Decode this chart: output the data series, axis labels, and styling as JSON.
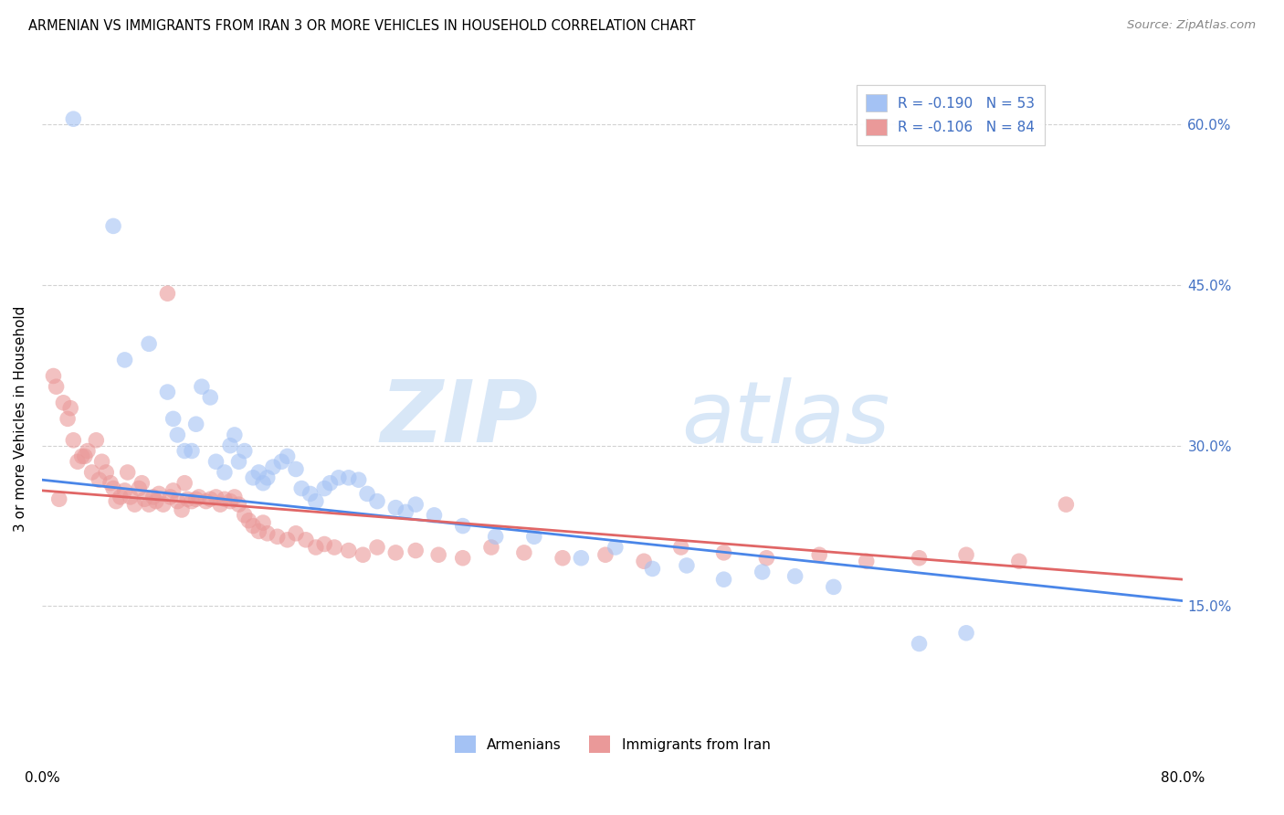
{
  "title": "ARMENIAN VS IMMIGRANTS FROM IRAN 3 OR MORE VEHICLES IN HOUSEHOLD CORRELATION CHART",
  "source": "Source: ZipAtlas.com",
  "ylabel": "3 or more Vehicles in Household",
  "legend_armenians": "Armenians",
  "legend_iran": "Immigrants from Iran",
  "legend_R_armenians": "-0.190",
  "legend_N_armenians": "53",
  "legend_R_iran": "-0.106",
  "legend_N_iran": "84",
  "color_armenians": "#a4c2f4",
  "color_iran": "#ea9999",
  "color_line_armenians": "#4a86e8",
  "color_line_iran": "#e06666",
  "watermark_zip": "ZIP",
  "watermark_atlas": "atlas",
  "xlim": [
    0.0,
    0.8
  ],
  "ylim": [
    0.0,
    0.65
  ],
  "x_ticks": [
    0.0,
    0.2,
    0.4,
    0.6,
    0.8
  ],
  "y_ticks": [
    0.15,
    0.3,
    0.45,
    0.6
  ],
  "armenians_x": [
    0.022,
    0.05,
    0.058,
    0.075,
    0.088,
    0.092,
    0.095,
    0.1,
    0.105,
    0.108,
    0.112,
    0.118,
    0.122,
    0.128,
    0.132,
    0.135,
    0.138,
    0.142,
    0.148,
    0.152,
    0.155,
    0.158,
    0.162,
    0.168,
    0.172,
    0.178,
    0.182,
    0.188,
    0.192,
    0.198,
    0.202,
    0.208,
    0.215,
    0.222,
    0.228,
    0.235,
    0.248,
    0.255,
    0.262,
    0.275,
    0.295,
    0.318,
    0.345,
    0.378,
    0.402,
    0.428,
    0.452,
    0.478,
    0.505,
    0.528,
    0.555,
    0.615,
    0.648
  ],
  "armenians_y": [
    0.605,
    0.505,
    0.38,
    0.395,
    0.35,
    0.325,
    0.31,
    0.295,
    0.295,
    0.32,
    0.355,
    0.345,
    0.285,
    0.275,
    0.3,
    0.31,
    0.285,
    0.295,
    0.27,
    0.275,
    0.265,
    0.27,
    0.28,
    0.285,
    0.29,
    0.278,
    0.26,
    0.255,
    0.248,
    0.26,
    0.265,
    0.27,
    0.27,
    0.268,
    0.255,
    0.248,
    0.242,
    0.238,
    0.245,
    0.235,
    0.225,
    0.215,
    0.215,
    0.195,
    0.205,
    0.185,
    0.188,
    0.175,
    0.182,
    0.178,
    0.168,
    0.115,
    0.125
  ],
  "iran_x": [
    0.008,
    0.01,
    0.012,
    0.015,
    0.018,
    0.02,
    0.022,
    0.025,
    0.028,
    0.03,
    0.032,
    0.035,
    0.038,
    0.04,
    0.042,
    0.045,
    0.048,
    0.05,
    0.052,
    0.055,
    0.058,
    0.06,
    0.062,
    0.065,
    0.068,
    0.07,
    0.072,
    0.075,
    0.078,
    0.08,
    0.082,
    0.085,
    0.088,
    0.09,
    0.092,
    0.095,
    0.098,
    0.1,
    0.102,
    0.105,
    0.108,
    0.11,
    0.115,
    0.118,
    0.122,
    0.125,
    0.128,
    0.132,
    0.135,
    0.138,
    0.142,
    0.145,
    0.148,
    0.152,
    0.155,
    0.158,
    0.165,
    0.172,
    0.178,
    0.185,
    0.192,
    0.198,
    0.205,
    0.215,
    0.225,
    0.235,
    0.248,
    0.262,
    0.278,
    0.295,
    0.315,
    0.338,
    0.365,
    0.395,
    0.422,
    0.448,
    0.478,
    0.508,
    0.545,
    0.578,
    0.615,
    0.648,
    0.685,
    0.718
  ],
  "iran_y": [
    0.365,
    0.355,
    0.25,
    0.34,
    0.325,
    0.335,
    0.305,
    0.285,
    0.29,
    0.29,
    0.295,
    0.275,
    0.305,
    0.268,
    0.285,
    0.275,
    0.265,
    0.26,
    0.248,
    0.252,
    0.258,
    0.275,
    0.252,
    0.245,
    0.26,
    0.265,
    0.25,
    0.245,
    0.252,
    0.248,
    0.255,
    0.245,
    0.442,
    0.252,
    0.258,
    0.248,
    0.24,
    0.265,
    0.25,
    0.248,
    0.25,
    0.252,
    0.248,
    0.25,
    0.252,
    0.245,
    0.25,
    0.248,
    0.252,
    0.245,
    0.235,
    0.23,
    0.225,
    0.22,
    0.228,
    0.218,
    0.215,
    0.212,
    0.218,
    0.212,
    0.205,
    0.208,
    0.205,
    0.202,
    0.198,
    0.205,
    0.2,
    0.202,
    0.198,
    0.195,
    0.205,
    0.2,
    0.195,
    0.198,
    0.192,
    0.205,
    0.2,
    0.195,
    0.198,
    0.192,
    0.195,
    0.198,
    0.192,
    0.245
  ]
}
